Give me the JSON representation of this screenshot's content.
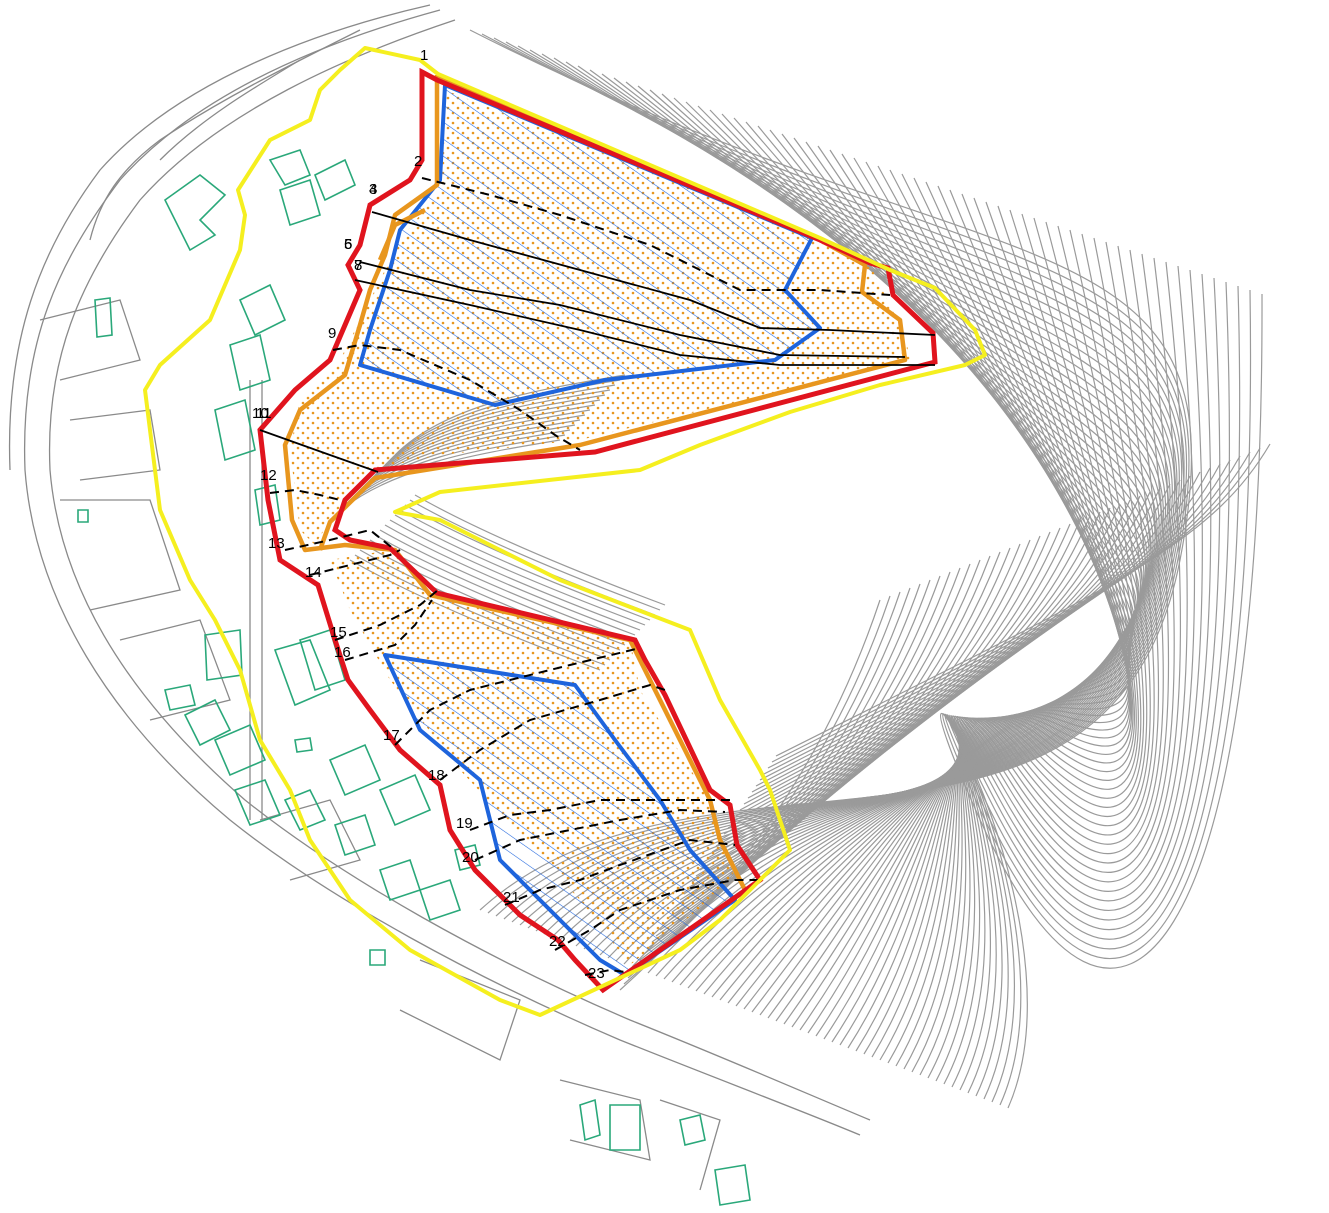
{
  "section_labels": [
    "1",
    "2",
    "3",
    "4",
    "5",
    "6",
    "7",
    "8",
    "9",
    "10",
    "11",
    "12",
    "13",
    "14",
    "15",
    "16",
    "17",
    "18",
    "19",
    "20",
    "21",
    "22",
    "23"
  ],
  "colors": {
    "study_boundary": "#f5ef1f",
    "hazard_outline": "#e0141e",
    "yellow_zone_edge": "#e8961e",
    "red_zone_hatch": "#1e64dc",
    "buildings": "#2aa87a",
    "contours": "#9a9a9a"
  },
  "icons": {
    "hatch_pattern": "blue-diagonal-hatch",
    "dot_pattern": "orange-dot-stipple"
  }
}
